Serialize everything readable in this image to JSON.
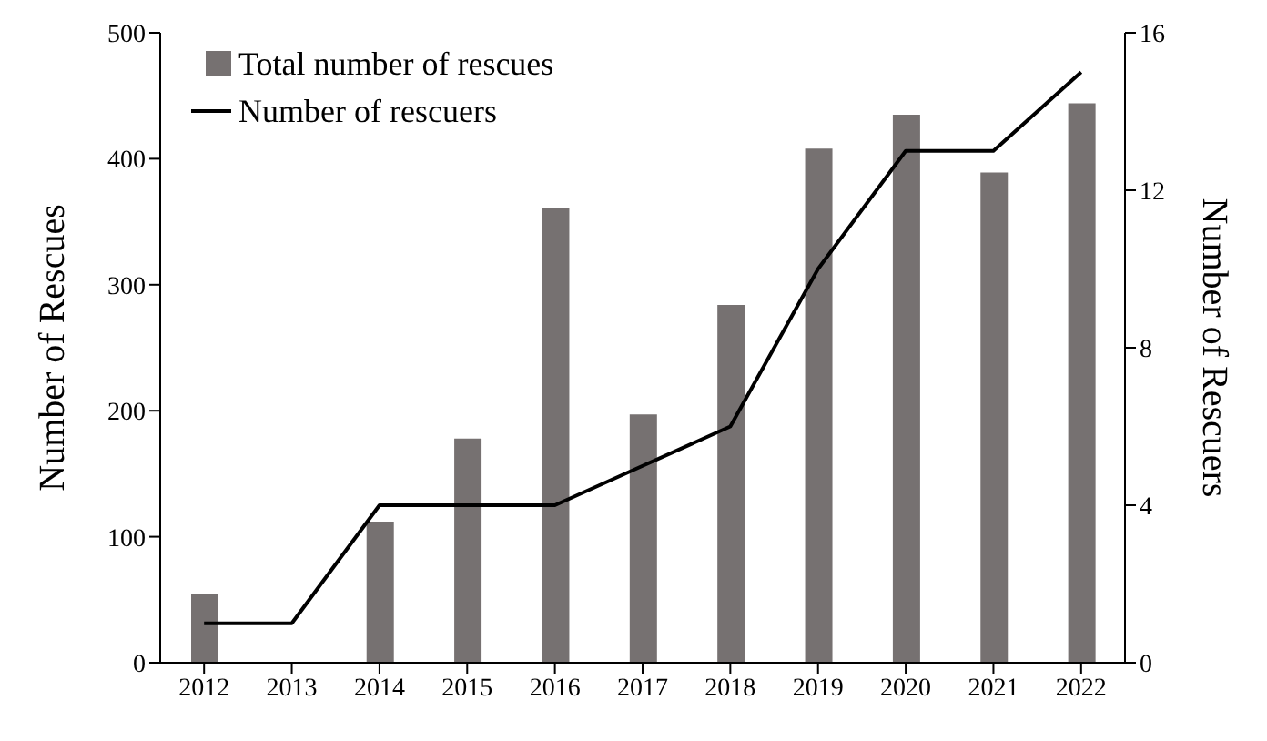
{
  "chart_data": {
    "type": "bar",
    "categories": [
      "2012",
      "2013",
      "2014",
      "2015",
      "2016",
      "2017",
      "2018",
      "2019",
      "2020",
      "2021",
      "2022"
    ],
    "series": [
      {
        "name": "Total number of rescues",
        "color": "#767171",
        "values": [
          55,
          0,
          112,
          178,
          361,
          197,
          284,
          408,
          435,
          389,
          444
        ]
      },
      {
        "name": "Number of rescuers",
        "type": "line",
        "axis": "y2",
        "color": "#000000",
        "values": [
          1,
          1,
          4,
          4,
          4,
          5,
          6,
          10,
          13,
          13,
          15
        ]
      }
    ],
    "ylabel": "Number of Rescues",
    "y2label": "Number of Rescuers",
    "ylim": [
      0,
      500
    ],
    "yticks": [
      0,
      100,
      200,
      300,
      400,
      500
    ],
    "y2lim": [
      0,
      16
    ],
    "y2ticks": [
      0,
      4,
      8,
      12,
      16
    ],
    "legend": "top left",
    "grid": false,
    "marker": "none",
    "line_style": "solid"
  }
}
